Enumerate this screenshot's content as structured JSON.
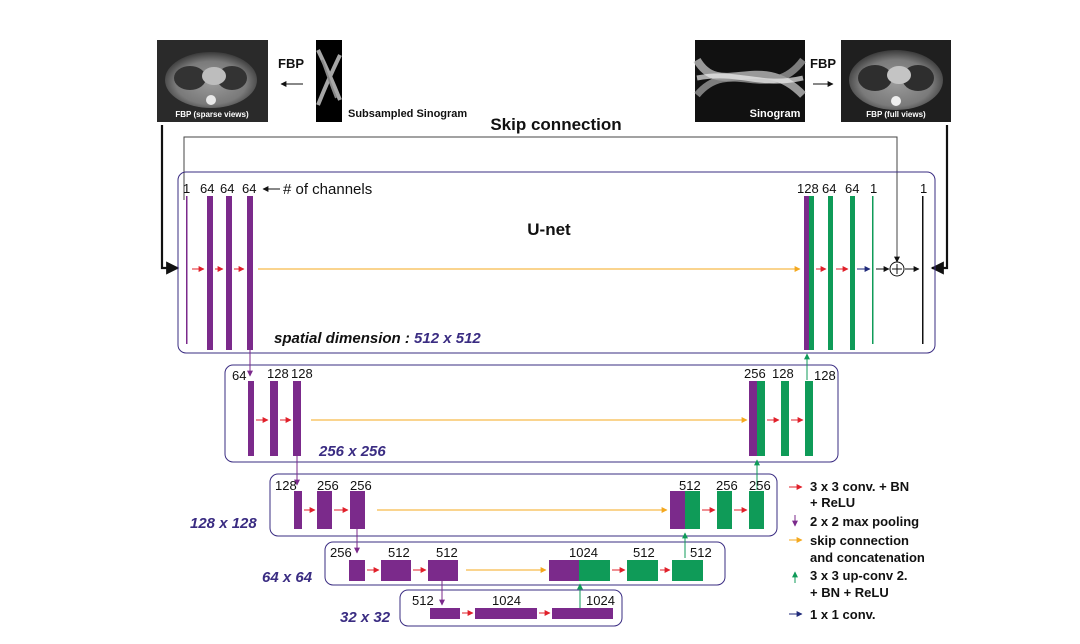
{
  "images": {
    "fbp_sparse_caption": "FBP (sparse views)",
    "subsampled_caption": "Subsampled Sinogram",
    "sinogram_caption": "Sinogram",
    "fbp_full_caption": "FBP (full views)"
  },
  "labels": {
    "fbp_left": "FBP",
    "fbp_right": "FBP",
    "skip_connection": "Skip connection",
    "unet": "U-net",
    "channels_note": "# of channels"
  },
  "levels": {
    "l1": {
      "dim_prefix": "spatial dimension : ",
      "dim": "512 x 512",
      "channels_left": [
        "1",
        "64",
        "64",
        "64"
      ],
      "channels_right": [
        "128",
        "64",
        "64",
        "1",
        "1"
      ]
    },
    "l2": {
      "dim": "256 x 256",
      "channels_left": [
        "64",
        "128",
        "128"
      ],
      "channels_right": [
        "256",
        "128",
        "128"
      ]
    },
    "l3": {
      "dim": "128 x 128",
      "channels_left": [
        "128",
        "256",
        "256"
      ],
      "channels_right": [
        "512",
        "256",
        "256"
      ]
    },
    "l4": {
      "dim": "64 x 64",
      "channels_left": [
        "256",
        "512",
        "512"
      ],
      "channels_right": [
        "1024",
        "512",
        "512"
      ]
    },
    "l5": {
      "dim": "32 x 32",
      "channels": [
        "512",
        "1024",
        "1024"
      ]
    }
  },
  "legend": [
    {
      "text1": "3 x 3 conv. + BN",
      "text2": "+ ReLU",
      "color": "#e0202a"
    },
    {
      "text1": "2 x 2 max pooling",
      "text2": "",
      "color": "#7b2a8b"
    },
    {
      "text1": "skip connection",
      "text2": "and concatenation",
      "color": "#f4a81e"
    },
    {
      "text1": "3 x 3 up-conv 2.",
      "text2": "+ BN + ReLU",
      "color": "#0f9b58"
    },
    {
      "text1": "1 x 1 conv.",
      "text2": "",
      "color": "#1f2a7a"
    }
  ],
  "colors": {
    "purple": "#7b2a8b",
    "green": "#0f9b58",
    "red": "#e0202a",
    "orange": "#f4a81e",
    "navy": "#1f2a7a",
    "box_border": "#3a2c82",
    "dim_text": "#3a2c82"
  }
}
